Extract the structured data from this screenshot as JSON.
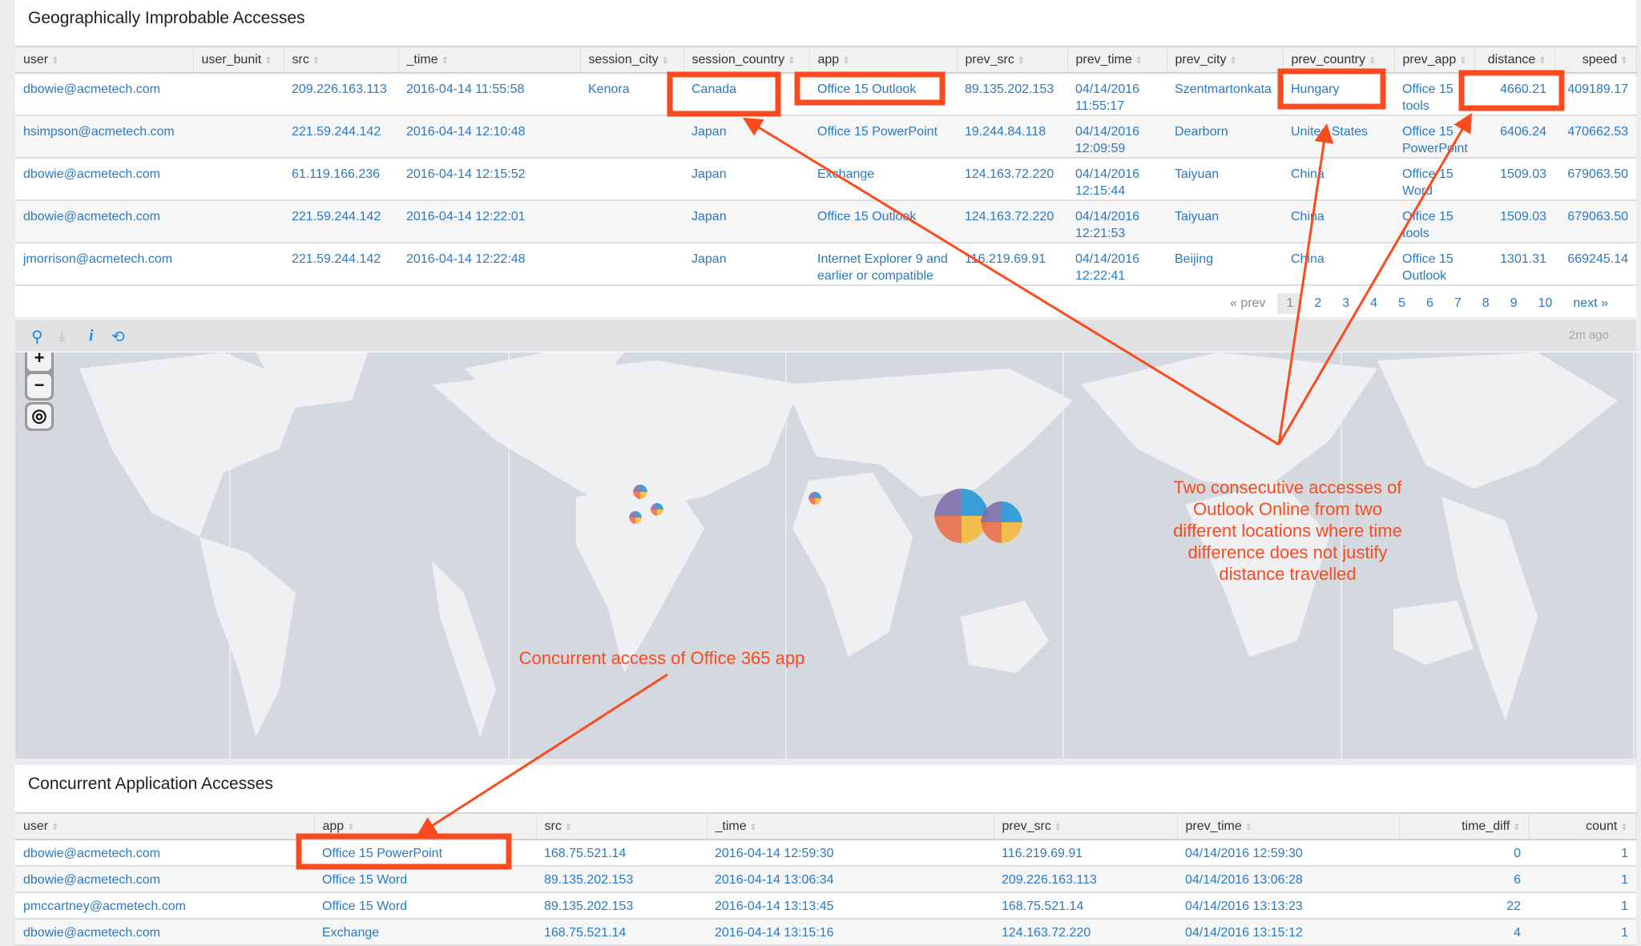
{
  "geo": {
    "title": "Geographically Improbable Accesses",
    "columns": [
      "user",
      "user_bunit",
      "src",
      "_time",
      "session_city",
      "session_country",
      "app",
      "prev_src",
      "prev_time",
      "prev_city",
      "prev_country",
      "prev_app",
      "distance",
      "speed"
    ],
    "rows": [
      [
        "dbowie@acmetech.com",
        "",
        "209.226.163.113",
        "2016-04-14 11:55:58",
        "Kenora",
        "Canada",
        "Office 15 Outlook",
        "89.135.202.153",
        "04/14/2016 11:55:17",
        "Szentmartonkata",
        "Hungary",
        "Office 15 tools",
        "4660.21",
        "409189.17"
      ],
      [
        "hsimpson@acmetech.com",
        "",
        "221.59.244.142",
        "2016-04-14 12:10:48",
        "",
        "Japan",
        "Office 15 PowerPoint",
        "19.244.84.118",
        "04/14/2016 12:09:59",
        "Dearborn",
        "United States",
        "Office 15 PowerPoint",
        "6406.24",
        "470662.53"
      ],
      [
        "dbowie@acmetech.com",
        "",
        "61.119.166.236",
        "2016-04-14 12:15:52",
        "",
        "Japan",
        "Exchange",
        "124.163.72.220",
        "04/14/2016 12:15:44",
        "Taiyuan",
        "China",
        "Office 15 Word",
        "1509.03",
        "679063.50"
      ],
      [
        "dbowie@acmetech.com",
        "",
        "221.59.244.142",
        "2016-04-14 12:22:01",
        "",
        "Japan",
        "Office 15 Outlook",
        "124.163.72.220",
        "04/14/2016 12:21:53",
        "Taiyuan",
        "China",
        "Office 15 tools",
        "1509.03",
        "679063.50"
      ],
      [
        "jmorrison@acmetech.com",
        "",
        "221.59.244.142",
        "2016-04-14 12:22:48",
        "",
        "Japan",
        "Internet Explorer 9 and earlier or compatible",
        "116.219.69.91",
        "04/14/2016 12:22:41",
        "Beijing",
        "China",
        "Office 15 Outlook",
        "1301.31",
        "669245.14"
      ]
    ],
    "pager": {
      "prev": "« prev",
      "pages": [
        "1",
        "2",
        "3",
        "4",
        "5",
        "6",
        "7",
        "8",
        "9",
        "10"
      ],
      "current": "1",
      "next": "next »"
    }
  },
  "map": {
    "toolbar_icons": [
      "search-icon",
      "download-icon",
      "info-icon",
      "refresh-icon"
    ],
    "updated": "2m ago",
    "pie_colors": [
      "#1e93d6",
      "#f9b934",
      "#ec6b40",
      "#7a6aa9"
    ]
  },
  "annotations": {
    "improbable": "Two consecutive accesses of Outlook Online from two different locations where time difference  does not justify distance travelled",
    "concurrent": "Concurrent access of Office 365 app",
    "color": "#fb4a1e"
  },
  "concurrent": {
    "title": "Concurrent Application Accesses",
    "columns": [
      "user",
      "app",
      "src",
      "_time",
      "prev_src",
      "prev_time",
      "time_diff",
      "count"
    ],
    "rows": [
      [
        "dbowie@acmetech.com",
        "Office 15 PowerPoint",
        "168.75.521.14",
        "2016-04-14 12:59:30",
        "116.219.69.91",
        "04/14/2016 12:59:30",
        "0",
        "1"
      ],
      [
        "dbowie@acmetech.com",
        "Office 15 Word",
        "89.135.202.153",
        "2016-04-14 13:06:34",
        "209.226.163.113",
        "04/14/2016 13:06:28",
        "6",
        "1"
      ],
      [
        "pmccartney@acmetech.com",
        "Office 15 Word",
        "89.135.202.153",
        "2016-04-14 13:13:45",
        "168.75.521.14",
        "04/14/2016 13:13:23",
        "22",
        "1"
      ],
      [
        "dbowie@acmetech.com",
        "Exchange",
        "168.75.521.14",
        "2016-04-14 13:15:16",
        "124.163.72.220",
        "04/14/2016 13:15:12",
        "4",
        "1"
      ]
    ]
  }
}
